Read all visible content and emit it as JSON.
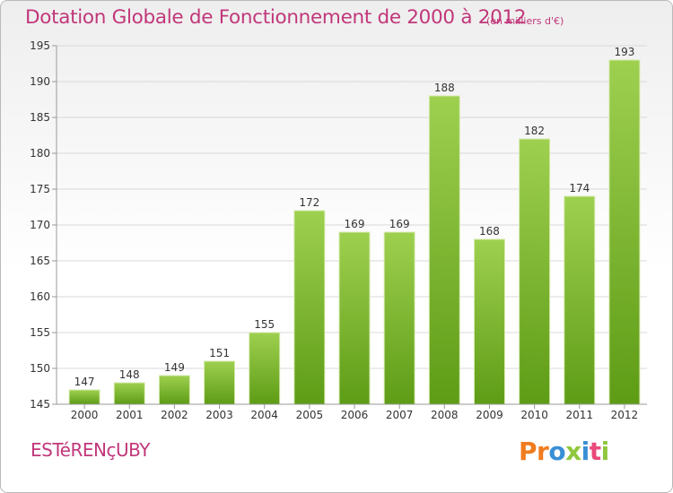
{
  "header": {
    "title": "Dotation Globale de Fonctionnement de 2000 à 2012",
    "subtitle": "(en milliers d'€)"
  },
  "footer": {
    "commune": "ESTéRENçUBY",
    "logo_text": "Proxiti",
    "logo_colors": [
      "#f07c1f",
      "#f07c1f",
      "#3a8fd6",
      "#8fc73e",
      "#3a8fd6",
      "#e94a7b",
      "#8fc73e"
    ]
  },
  "colors": {
    "title": "#c1377a",
    "bar_top": "#9ed04f",
    "bar_bottom": "#5e9c16",
    "grid": "#d9d9d9",
    "axis": "#999999",
    "text": "#333333"
  },
  "chart_data": {
    "type": "bar",
    "title": "Dotation Globale de Fonctionnement de 2000 à 2012",
    "subtitle": "(en milliers d'€)",
    "xlabel": "",
    "ylabel": "",
    "categories": [
      "2000",
      "2001",
      "2002",
      "2003",
      "2004",
      "2005",
      "2006",
      "2007",
      "2008",
      "2009",
      "2010",
      "2011",
      "2012"
    ],
    "values": [
      147,
      148,
      149,
      151,
      155,
      172,
      169,
      169,
      188,
      168,
      182,
      174,
      193
    ],
    "ylim": [
      145,
      195
    ],
    "yticks": [
      145,
      150,
      155,
      160,
      165,
      170,
      175,
      180,
      185,
      190,
      195
    ],
    "grid": true,
    "legend": "none"
  }
}
